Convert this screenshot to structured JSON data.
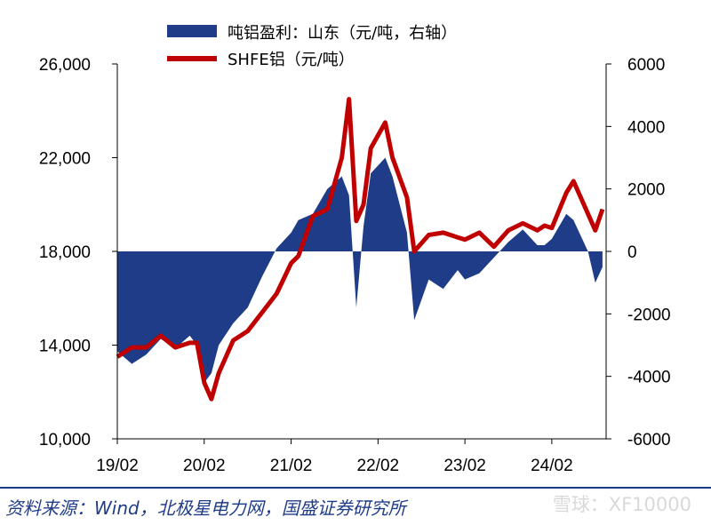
{
  "chart_data": {
    "type": "line",
    "x_tick_labels": [
      "19/02",
      "20/02",
      "21/02",
      "22/02",
      "23/02",
      "24/02"
    ],
    "y_left": {
      "ylim": [
        10000,
        26000
      ],
      "tick_labels": [
        "26,000",
        "22,000",
        "18,000",
        "14,000",
        "10,000"
      ],
      "ticks": [
        26000,
        22000,
        18000,
        14000,
        10000
      ]
    },
    "y_right": {
      "ylim": [
        -6000,
        6000
      ],
      "tick_labels": [
        "6000",
        "4000",
        "2000",
        "0",
        "-2000",
        "-4000",
        "-6000"
      ],
      "ticks": [
        6000,
        4000,
        2000,
        0,
        -2000,
        -4000,
        -6000
      ]
    },
    "legend_position": "top",
    "series": [
      {
        "name": "吨铝盈利：山东（元/吨，右轴）",
        "type": "area",
        "axis": "right",
        "color": "#1f3c88",
        "points": [
          [
            "2019-02",
            -3200
          ],
          [
            "2019-04",
            -3600
          ],
          [
            "2019-06",
            -3300
          ],
          [
            "2019-08",
            -2800
          ],
          [
            "2019-10",
            -3100
          ],
          [
            "2019-12",
            -2700
          ],
          [
            "2020-01",
            -3000
          ],
          [
            "2020-02",
            -4200
          ],
          [
            "2020-03",
            -3900
          ],
          [
            "2020-04",
            -3000
          ],
          [
            "2020-06",
            -2300
          ],
          [
            "2020-08",
            -1800
          ],
          [
            "2020-10",
            -800
          ],
          [
            "2020-12",
            100
          ],
          [
            "2021-02",
            600
          ],
          [
            "2021-03",
            1000
          ],
          [
            "2021-05",
            1200
          ],
          [
            "2021-07",
            2000
          ],
          [
            "2021-09",
            2400
          ],
          [
            "2021-10",
            1800
          ],
          [
            "2021-11",
            -1800
          ],
          [
            "2021-12",
            800
          ],
          [
            "2022-01",
            2500
          ],
          [
            "2022-03",
            3000
          ],
          [
            "2022-04",
            2400
          ],
          [
            "2022-06",
            600
          ],
          [
            "2022-07",
            -2200
          ],
          [
            "2022-09",
            -900
          ],
          [
            "2022-11",
            -1200
          ],
          [
            "2023-01",
            -600
          ],
          [
            "2023-02",
            -900
          ],
          [
            "2023-04",
            -700
          ],
          [
            "2023-06",
            -200
          ],
          [
            "2023-08",
            300
          ],
          [
            "2023-10",
            700
          ],
          [
            "2023-12",
            200
          ],
          [
            "2024-01",
            200
          ],
          [
            "2024-02",
            400
          ],
          [
            "2024-04",
            1200
          ],
          [
            "2024-05",
            1000
          ],
          [
            "2024-07",
            0
          ],
          [
            "2024-08",
            -1000
          ],
          [
            "2024-09",
            -500
          ]
        ]
      },
      {
        "name": "SHFE铝（元/吨）",
        "type": "line",
        "axis": "left",
        "color": "#c00000",
        "points": [
          [
            "2019-02",
            13500
          ],
          [
            "2019-04",
            13900
          ],
          [
            "2019-06",
            13900
          ],
          [
            "2019-08",
            14400
          ],
          [
            "2019-10",
            13900
          ],
          [
            "2019-12",
            14100
          ],
          [
            "2020-01",
            14100
          ],
          [
            "2020-02",
            12400
          ],
          [
            "2020-03",
            11700
          ],
          [
            "2020-04",
            12800
          ],
          [
            "2020-06",
            14200
          ],
          [
            "2020-08",
            14600
          ],
          [
            "2020-10",
            15400
          ],
          [
            "2020-12",
            16200
          ],
          [
            "2021-02",
            17500
          ],
          [
            "2021-03",
            17800
          ],
          [
            "2021-05",
            19500
          ],
          [
            "2021-07",
            19800
          ],
          [
            "2021-09",
            22000
          ],
          [
            "2021-10",
            24500
          ],
          [
            "2021-11",
            19300
          ],
          [
            "2021-12",
            20000
          ],
          [
            "2022-01",
            22400
          ],
          [
            "2022-03",
            23500
          ],
          [
            "2022-04",
            22000
          ],
          [
            "2022-06",
            20300
          ],
          [
            "2022-07",
            18000
          ],
          [
            "2022-09",
            18700
          ],
          [
            "2022-11",
            18800
          ],
          [
            "2023-01",
            18600
          ],
          [
            "2023-02",
            18500
          ],
          [
            "2023-04",
            18800
          ],
          [
            "2023-06",
            18200
          ],
          [
            "2023-08",
            18900
          ],
          [
            "2023-10",
            19200
          ],
          [
            "2023-12",
            18900
          ],
          [
            "2024-01",
            19100
          ],
          [
            "2024-02",
            19000
          ],
          [
            "2024-04",
            20500
          ],
          [
            "2024-05",
            21000
          ],
          [
            "2024-07",
            19600
          ],
          [
            "2024-08",
            18900
          ],
          [
            "2024-09",
            19800
          ]
        ]
      }
    ]
  },
  "source_text": "资料来源：Wind，北极星电力网，国盛证券研究所",
  "watermark": "雪球：XF10000"
}
